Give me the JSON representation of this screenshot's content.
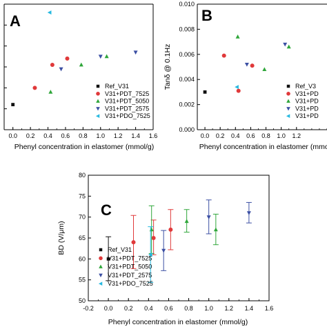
{
  "colors": {
    "Ref_V31": "#111111",
    "V31+PDT_7525": "#e0393a",
    "V31+PDT_5050": "#2fa63a",
    "V31+PDT_2575": "#3b4fa3",
    "V31+PDO_7525": "#27b9e0"
  },
  "chart_data": [
    {
      "panel": "A",
      "type": "scatter",
      "xlabel": "Phenyl concentration in elastomer (mmol/g)",
      "ylabel": "",
      "xlim": [
        -0.1,
        1.6
      ],
      "ylim": [
        0,
        6
      ],
      "xticks": [
        "0.0",
        "0.2",
        "0.4",
        "0.6",
        "0.8",
        "1.0",
        "1.2",
        "1.4",
        "1.6"
      ],
      "yticks": [],
      "legend": "lower-right",
      "series": [
        {
          "name": "Ref_V31",
          "marker": "square",
          "x": [
            0.0
          ],
          "y": [
            1.2
          ]
        },
        {
          "name": "V31+PDT_7525",
          "marker": "circle",
          "x": [
            0.25,
            0.45,
            0.62
          ],
          "y": [
            2.0,
            3.1,
            3.4
          ]
        },
        {
          "name": "V31+PDT_5050",
          "marker": "triangle-up",
          "x": [
            0.43,
            0.78,
            1.07
          ],
          "y": [
            1.8,
            3.1,
            3.5
          ]
        },
        {
          "name": "V31+PDT_2575",
          "marker": "triangle-down",
          "x": [
            0.55,
            1.0,
            1.4
          ],
          "y": [
            2.9,
            3.5,
            3.7
          ]
        },
        {
          "name": "V31+PDO_7525",
          "marker": "triangle-left",
          "x": [
            0.42
          ],
          "y": [
            5.6
          ]
        }
      ]
    },
    {
      "panel": "B",
      "type": "scatter",
      "xlabel": "Phenyl concentration in elastomer (mmol/g)",
      "ylabel": "Tanδ @ 0.1Hz",
      "xlim": [
        -0.1,
        1.6
      ],
      "ylim": [
        0.0,
        0.01
      ],
      "xticks": [
        "0.0",
        "0.2",
        "0.4",
        "0.6",
        "0.8",
        "1.0",
        "1.2"
      ],
      "yticks": [
        "0.000",
        "0.002",
        "0.004",
        "0.006",
        "0.008",
        "0.010"
      ],
      "legend": "lower-right",
      "legend_entries": [
        "Ref_V31",
        "V31+PDT_7525",
        "V31+PDT_5050",
        "V31+PDT_2575",
        "V31+PDO_7525"
      ],
      "legend_shown": [
        "Ref_V3",
        "V31+PD",
        "V31+PD",
        "V31+PD",
        "V31+PD"
      ],
      "series": [
        {
          "name": "Ref_V31",
          "marker": "square",
          "x": [
            0.0
          ],
          "y": [
            0.003
          ]
        },
        {
          "name": "V31+PDT_7525",
          "marker": "circle",
          "x": [
            0.25,
            0.44,
            0.62
          ],
          "y": [
            0.0059,
            0.0031,
            0.0051
          ]
        },
        {
          "name": "V31+PDT_5050",
          "marker": "triangle-up",
          "x": [
            0.43,
            0.78,
            1.1
          ],
          "y": [
            0.0074,
            0.0048,
            0.0066
          ]
        },
        {
          "name": "V31+PDT_2575",
          "marker": "triangle-down",
          "x": [
            0.55,
            1.05
          ],
          "y": [
            0.0052,
            0.0068
          ]
        },
        {
          "name": "V31+PDO_7525",
          "marker": "triangle-left",
          "x": [
            0.42
          ],
          "y": [
            0.0034
          ]
        }
      ]
    },
    {
      "panel": "C",
      "type": "scatter",
      "xlabel": "Phenyl concentration in elastomer (mmol/g)",
      "ylabel": "BD (V/μm)",
      "xlim": [
        -0.2,
        1.6
      ],
      "ylim": [
        50,
        80
      ],
      "xticks": [
        "-0.2",
        "0.0",
        "0.2",
        "0.4",
        "0.6",
        "0.8",
        "1.0",
        "1.2",
        "1.4",
        "1.6"
      ],
      "yticks": [
        "50",
        "55",
        "60",
        "65",
        "70",
        "75",
        "80"
      ],
      "legend": "lower-left",
      "series": [
        {
          "name": "Ref_V31",
          "marker": "square",
          "x": [
            0.0
          ],
          "y": [
            60.0
          ],
          "err_low": [
            54.8
          ],
          "err_high": [
            65.3
          ]
        },
        {
          "name": "V31+PDT_7525",
          "marker": "circle",
          "x": [
            0.25,
            0.45,
            0.62
          ],
          "y": [
            64.0,
            65.0,
            67.0
          ],
          "err_low": [
            57.7,
            61.0,
            62.2
          ],
          "err_high": [
            70.4,
            69.3,
            71.8
          ]
        },
        {
          "name": "V31+PDT_5050",
          "marker": "triangle-up",
          "x": [
            0.43,
            0.78,
            1.07
          ],
          "y": [
            67.0,
            69.0,
            67.0
          ],
          "err_low": [
            61.3,
            66.4,
            63.4
          ],
          "err_high": [
            72.7,
            71.8,
            70.7
          ]
        },
        {
          "name": "V31+PDT_2575",
          "marker": "triangle-down",
          "x": [
            0.55,
            1.0,
            1.4
          ],
          "y": [
            62.0,
            70.0,
            71.0
          ],
          "err_low": [
            57.2,
            66.0,
            68.6
          ],
          "err_high": [
            66.8,
            74.1,
            73.5
          ]
        },
        {
          "name": "V31+PDO_7525",
          "marker": "triangle-left",
          "x": [
            0.42
          ],
          "y": [
            61.0
          ],
          "err_low": [
            54.4
          ],
          "err_high": [
            67.7
          ]
        }
      ]
    }
  ],
  "legend_labels": [
    "Ref_V31",
    "V31+PDT_7525",
    "V31+PDT_5050",
    "V31+PDT_2575",
    "V31+PDO_7525"
  ]
}
